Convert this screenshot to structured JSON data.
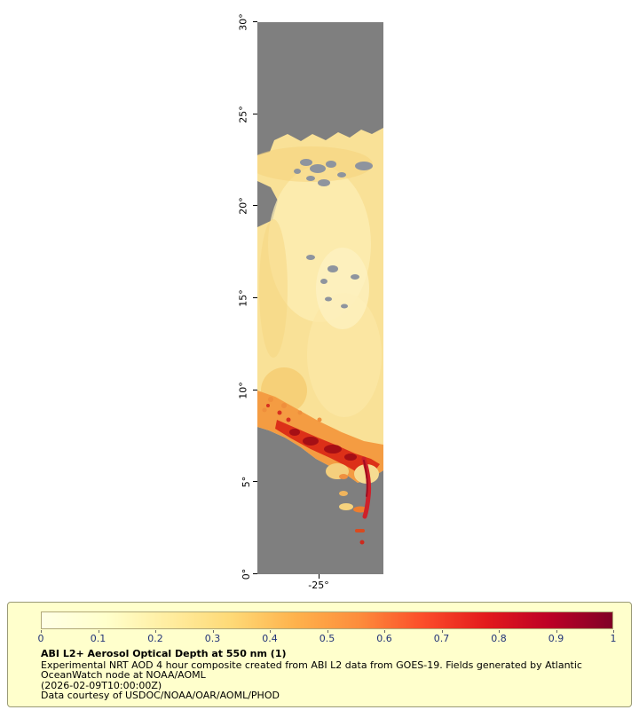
{
  "page": {
    "bg": "#ffffff"
  },
  "map": {
    "lat_ticks": [
      "30°",
      "25°",
      "20°",
      "15°",
      "10°",
      "5°",
      "0°"
    ],
    "lon_tick": "-25°",
    "colors": {
      "no_data": "#7f7f7f",
      "aod_low": "#f9e197",
      "orange": "#f49c42",
      "red": "#dc3018",
      "dark_red": "#a50f15",
      "speckle_gray": "#8e949e"
    }
  },
  "legend": {
    "background": "#ffffcc",
    "border": "#9a9a77",
    "title": "ABI L2+ Aerosol Optical Depth at 550 nm (1)",
    "description_line1": "Experimental NRT AOD 4 hour composite created from ABI L2 data from GOES-19. Fields generated by Atlantic",
    "description_line2": "OceanWatch node at NOAA/AOML",
    "timestamp": "(2026-02-09T10:00:00Z)",
    "credit": "Data courtesy of USDOC/NOAA/OAR/AOML/PHOD",
    "colorbar": {
      "ticks": [
        "0",
        "0.1",
        "0.2",
        "0.3",
        "0.4",
        "0.5",
        "0.6",
        "0.7",
        "0.8",
        "0.9",
        "1"
      ],
      "tick_color": "#223377",
      "stops": [
        "#ffffe5",
        "#ffffcc",
        "#ffeda0",
        "#fed976",
        "#feb24c",
        "#fd8d3c",
        "#fc4e2a",
        "#e31a1c",
        "#bd0026",
        "#800026"
      ]
    }
  },
  "chart_data": {
    "type": "heatmap",
    "title": "ABI L2+ Aerosol Optical Depth at 550 nm (1)",
    "subtitle": "Experimental NRT AOD 4 hour composite created from ABI L2 data from GOES-19. Fields generated by Atlantic OceanWatch node at NOAA/AOML (2026-02-09T10:00:00Z)",
    "credit": "Data courtesy of USDOC/NOAA/OAR/AOML/PHOD",
    "y_axis": {
      "tick_labels": [
        "30°",
        "25°",
        "20°",
        "15°",
        "10°",
        "5°",
        "0°"
      ],
      "range_deg_lat": [
        0,
        30
      ]
    },
    "x_axis": {
      "tick_labels": [
        "-25°"
      ]
    },
    "colorbar": {
      "min": 0,
      "max": 1,
      "label_values": [
        0,
        0.1,
        0.2,
        0.3,
        0.4,
        0.5,
        0.6,
        0.7,
        0.8,
        0.9,
        1
      ],
      "colormap": "YlOrRd"
    },
    "no_data_color": "#7f7f7f",
    "features": [
      {
        "area": "lat 24N-30N",
        "aod": null,
        "note": "no data (gray swath)"
      },
      {
        "area": "lat 22N-24N",
        "aod": 0.2,
        "note": "patchy pale-yellow data edge with gray retrieval gaps"
      },
      {
        "area": "lat 10N-22N",
        "aod": 0.15,
        "note": "broad pale-yellow background AOD, small gray speckle gaps near 15N-17N"
      },
      {
        "area": "lat 8N-10N west side",
        "aod": 0.45,
        "note": "orange enhanced-AOD band"
      },
      {
        "area": "lat 7N-8.5N along southern data edge",
        "aod": 0.8,
        "note": "red to dark-red high-AOD plume"
      },
      {
        "area": "lat 3.5N-7N near -24.5",
        "aod": 0.6,
        "note": "scattered yellow-orange patches and a narrow red streak"
      },
      {
        "area": "lat 0N-3.5N",
        "aod": null,
        "note": "no data (gray swath)"
      }
    ]
  }
}
